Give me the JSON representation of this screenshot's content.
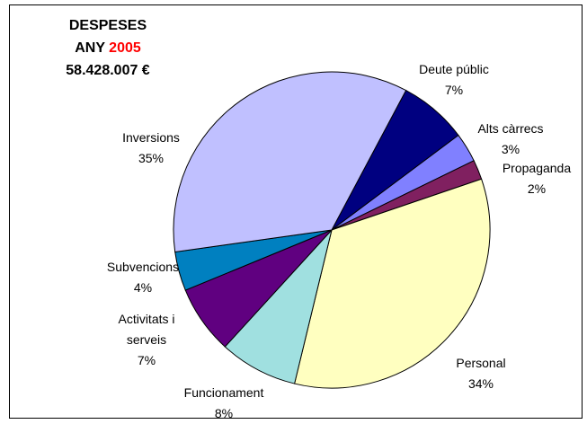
{
  "chart_data": {
    "type": "pie",
    "title": "DESPESES",
    "year_label": "ANY",
    "year": "2005",
    "total": "58.428.007 €",
    "categories": [
      "Deute públic",
      "Alts càrrecs",
      "Propaganda",
      "Personal",
      "Funcionament",
      "Activitats i serveis",
      "Subvencions",
      "Inversions"
    ],
    "values": [
      7,
      3,
      2,
      34,
      8,
      7,
      4,
      35
    ],
    "value_labels": [
      "7%",
      "3%",
      "2%",
      "34%",
      "8%",
      "7%",
      "4%",
      "35%"
    ],
    "colors": [
      "#000080",
      "#8080ff",
      "#802060",
      "#ffffc0",
      "#a0e0e0",
      "#600080",
      "#0080c0",
      "#c0c0ff"
    ],
    "year_color": "#ff0000"
  }
}
